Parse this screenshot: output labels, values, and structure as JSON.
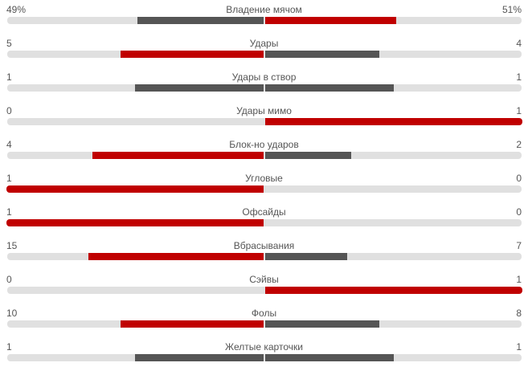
{
  "colors": {
    "winner": "#c00000",
    "loser": "#555555",
    "track": "#e0e0e0",
    "text": "#555555"
  },
  "stats": [
    {
      "label": "Владение мячом",
      "home": "49%",
      "away": "51%",
      "home_value": 49,
      "away_value": 51
    },
    {
      "label": "Удары",
      "home": "5",
      "away": "4",
      "home_value": 5,
      "away_value": 4
    },
    {
      "label": "Удары в створ",
      "home": "1",
      "away": "1",
      "home_value": 1,
      "away_value": 1
    },
    {
      "label": "Удары мимо",
      "home": "0",
      "away": "1",
      "home_value": 0,
      "away_value": 1
    },
    {
      "label": "Блок-но ударов",
      "home": "4",
      "away": "2",
      "home_value": 4,
      "away_value": 2
    },
    {
      "label": "Угловые",
      "home": "1",
      "away": "0",
      "home_value": 1,
      "away_value": 0
    },
    {
      "label": "Офсайды",
      "home": "1",
      "away": "0",
      "home_value": 1,
      "away_value": 0
    },
    {
      "label": "Вбрасывания",
      "home": "15",
      "away": "7",
      "home_value": 15,
      "away_value": 7
    },
    {
      "label": "Сэйвы",
      "home": "0",
      "away": "1",
      "home_value": 0,
      "away_value": 1
    },
    {
      "label": "Фолы",
      "home": "10",
      "away": "8",
      "home_value": 10,
      "away_value": 8
    },
    {
      "label": "Желтые карточки",
      "home": "1",
      "away": "1",
      "home_value": 1,
      "away_value": 1
    }
  ]
}
